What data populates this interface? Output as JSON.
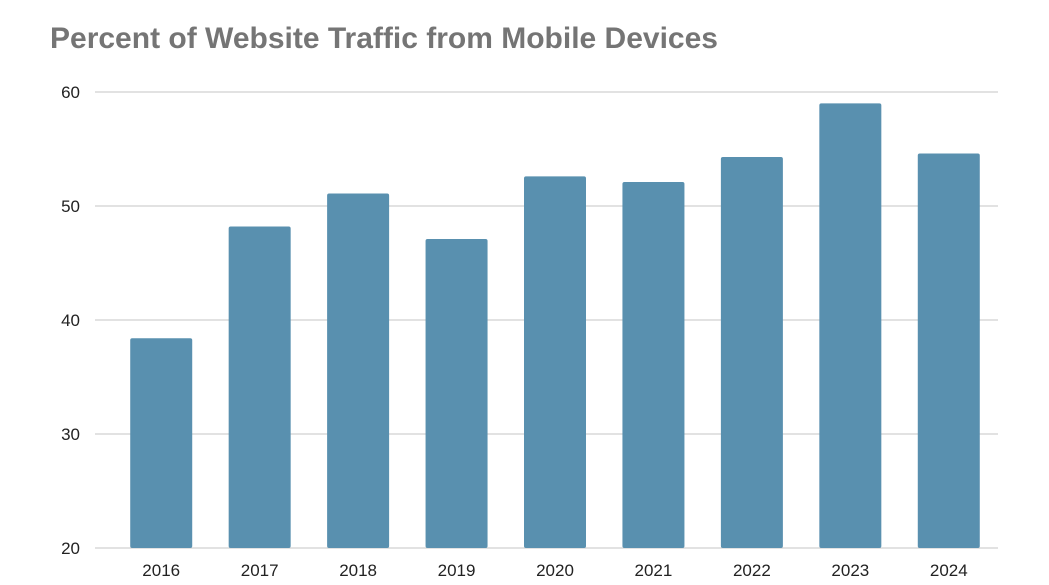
{
  "chart_data": {
    "type": "bar",
    "title": "Percent of Website Traffic from Mobile Devices",
    "xlabel": "",
    "ylabel": "",
    "categories": [
      "2016",
      "2017",
      "2018",
      "2019",
      "2020",
      "2021",
      "2022",
      "2023",
      "2024"
    ],
    "values": [
      38.4,
      48.2,
      51.1,
      47.1,
      52.6,
      52.1,
      54.3,
      59.0,
      54.6
    ],
    "ylim": [
      20,
      60
    ],
    "yticks": [
      20,
      30,
      40,
      50,
      60
    ],
    "grid": true,
    "bar_color": "#5990af",
    "grid_color": "#d0d0d0"
  }
}
